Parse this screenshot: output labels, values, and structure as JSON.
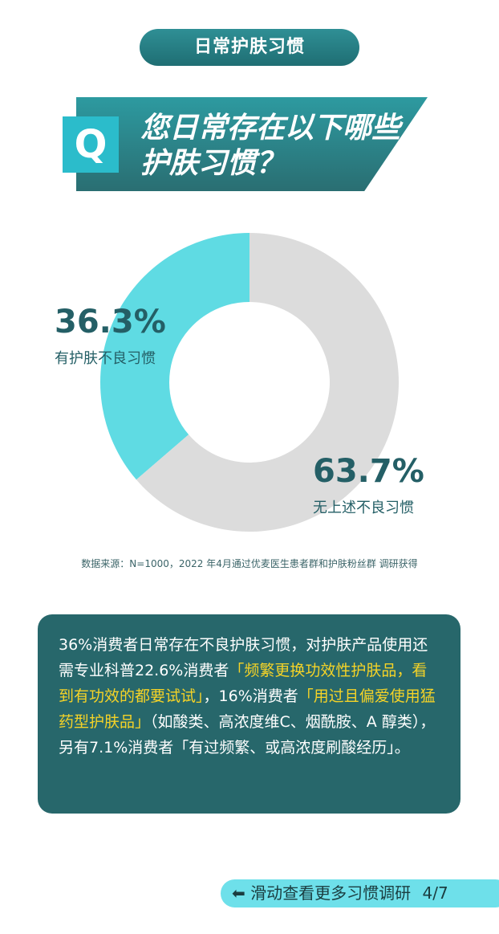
{
  "header": {
    "pill": "日常护肤习惯",
    "q_letter": "Q",
    "question": "您日常存在以下哪些护肤习惯？"
  },
  "chart_data": {
    "type": "pie",
    "donut": true,
    "categories": [
      "有护肤不良习惯",
      "无上述不良习惯"
    ],
    "values": [
      36.3,
      63.7
    ],
    "labels": [
      "36.3%",
      "63.7%"
    ],
    "colors": [
      "#5fdbe3",
      "#dcdcdc"
    ]
  },
  "source": "数据来源：N=1000，2022 年4月通过优麦医生患者群和护肤粉丝群 调研获得",
  "summary": {
    "p1": "36%消费者日常存在不良护肤习惯，对护肤产品使用还需专业科普22.6%消费者",
    "h1": "「频繁更换功效性护肤品，看到有功效的都要试试」",
    "p2": "，16%消费者",
    "h2": "「用过且偏爱使用猛药型护肤品」",
    "p3": "（如酸类、高浓度维C、烟酰胺、A 醇类），另有7.1%消费者「有过频繁、或高浓度刷酸经历」。"
  },
  "footer": {
    "arrow": "⬅",
    "label": "滑动查看更多习惯调研",
    "page": "4/7"
  }
}
